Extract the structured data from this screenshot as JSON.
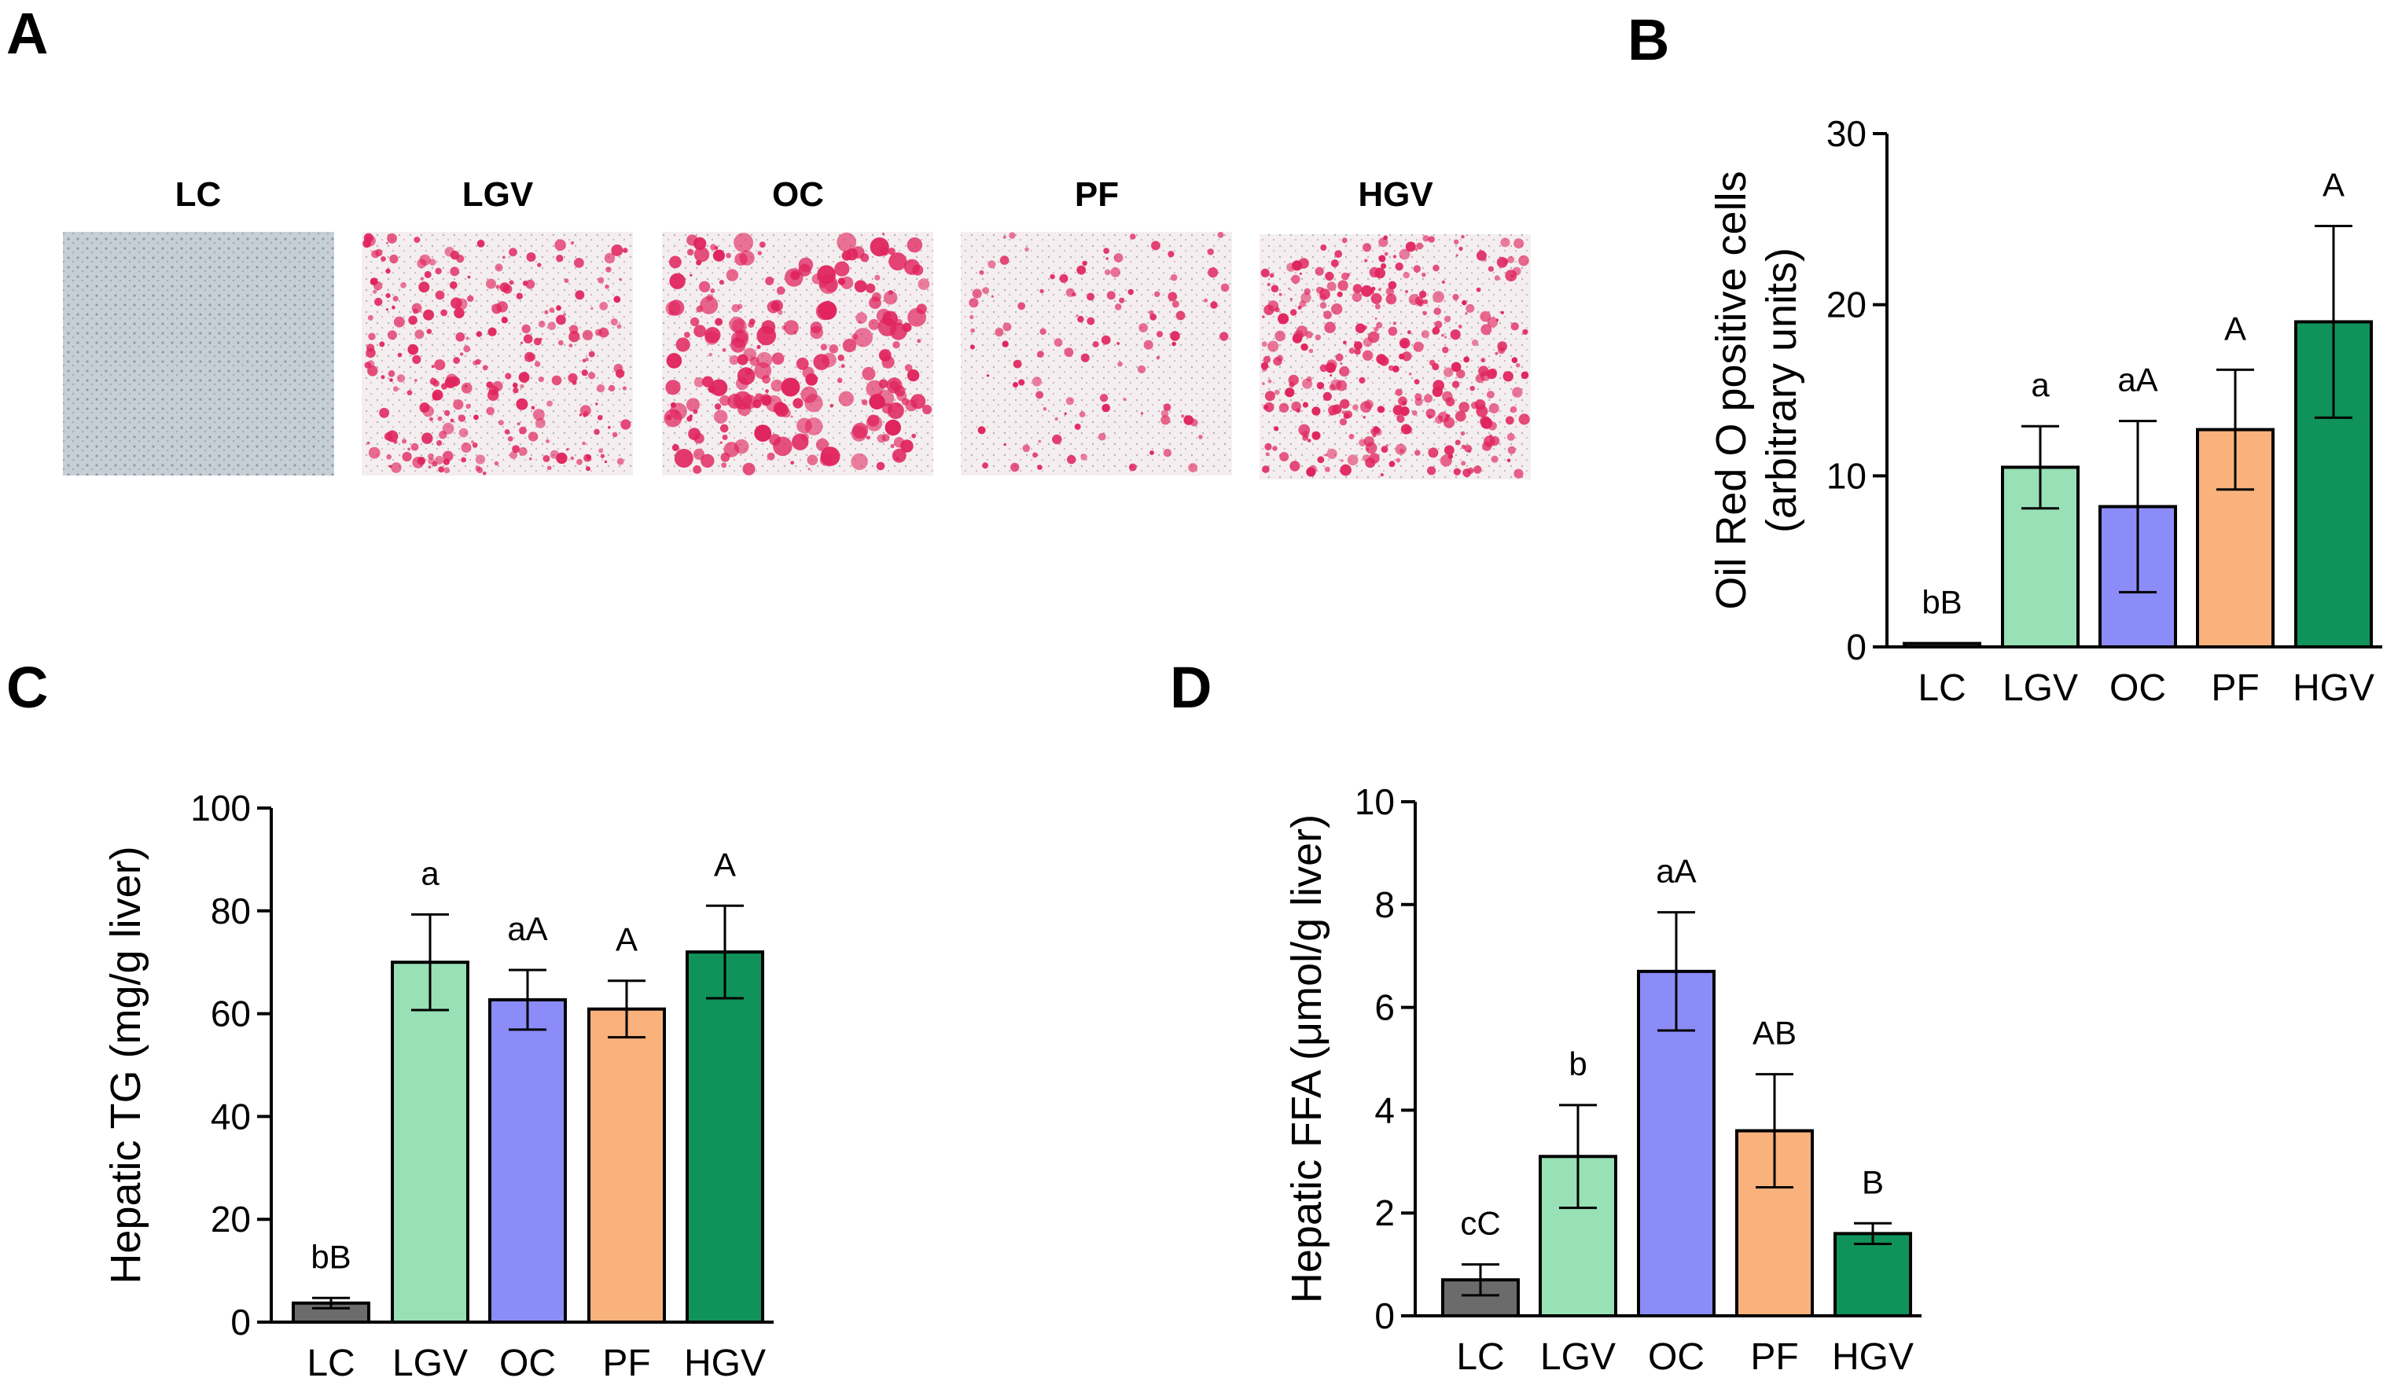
{
  "panels": {
    "A": {
      "letter": "A",
      "images": [
        {
          "label": "LC",
          "stain": "low"
        },
        {
          "label": "LGV",
          "stain": "medium"
        },
        {
          "label": "OC",
          "stain": "high"
        },
        {
          "label": "PF",
          "stain": "sparse"
        },
        {
          "label": "HGV",
          "stain": "dense"
        }
      ]
    },
    "B": {
      "letter": "B"
    },
    "C": {
      "letter": "C"
    },
    "D": {
      "letter": "D"
    }
  },
  "colors": {
    "LC": "#6b6b6b",
    "LGV": "#98e0b6",
    "OC": "#8c8cf9",
    "PF": "#f9b27c",
    "HGV": "#10935a",
    "stain_pink": "#e0245e",
    "tissue_bg": "#f3eef0",
    "lc_bg": "#c7cfd6"
  },
  "chart_data": [
    {
      "id": "B",
      "type": "bar",
      "categories": [
        "LC",
        "LGV",
        "OC",
        "PF",
        "HGV"
      ],
      "values": [
        0.2,
        10.5,
        8.2,
        12.7,
        19.0
      ],
      "errors": [
        0.0,
        2.4,
        5.0,
        3.5,
        5.6
      ],
      "sig_labels": [
        "bB",
        "a",
        "aA",
        "A",
        "A"
      ],
      "ylabel_lines": [
        "Oil Red O positive cells",
        "(arbitrary units)"
      ],
      "ylim": [
        0,
        30
      ],
      "yticks": [
        0,
        10,
        20,
        30
      ]
    },
    {
      "id": "C",
      "type": "bar",
      "categories": [
        "LC",
        "LGV",
        "OC",
        "PF",
        "HGV"
      ],
      "values": [
        3.7,
        70.0,
        62.7,
        60.9,
        72.0
      ],
      "errors": [
        1.0,
        9.3,
        5.8,
        5.5,
        9.0
      ],
      "sig_labels": [
        "bB",
        "a",
        "aA",
        "A",
        "A"
      ],
      "ylabel_lines": [
        "Hepatic TG (mg/g liver)"
      ],
      "ylim": [
        0,
        100
      ],
      "yticks": [
        0,
        20,
        40,
        60,
        80,
        100
      ]
    },
    {
      "id": "D",
      "type": "bar",
      "categories": [
        "LC",
        "LGV",
        "OC",
        "PF",
        "HGV"
      ],
      "values": [
        0.7,
        3.1,
        6.7,
        3.6,
        1.6
      ],
      "errors": [
        0.3,
        1.0,
        1.15,
        1.1,
        0.2
      ],
      "sig_labels": [
        "cC",
        "b",
        "aA",
        "AB",
        "B"
      ],
      "ylabel_lines": [
        "Hepatic FFA (μmol/g liver)"
      ],
      "ylim": [
        0,
        10
      ],
      "yticks": [
        0,
        2,
        4,
        6,
        8,
        10
      ]
    }
  ]
}
